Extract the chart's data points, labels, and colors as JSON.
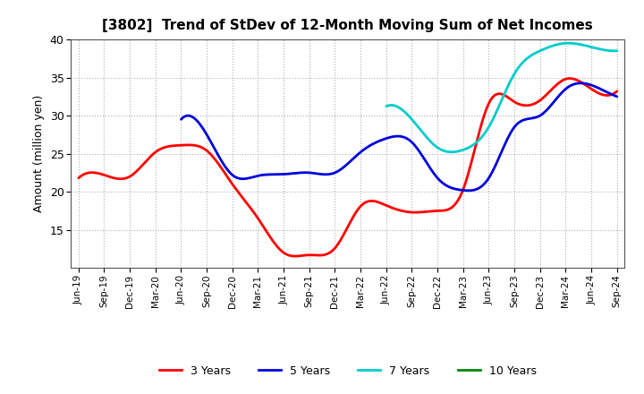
{
  "title": "[3802]  Trend of StDev of 12-Month Moving Sum of Net Incomes",
  "ylabel": "Amount (million yen)",
  "ylim": [
    10,
    40
  ],
  "yticks": [
    15,
    20,
    25,
    30,
    35,
    40
  ],
  "background_color": "#ffffff",
  "plot_bg_color": "#ffffff",
  "grid_color": "#b0b0b0",
  "x_labels": [
    "Jun-19",
    "Sep-19",
    "Dec-19",
    "Mar-20",
    "Jun-20",
    "Sep-20",
    "Dec-20",
    "Mar-21",
    "Jun-21",
    "Sep-21",
    "Dec-21",
    "Mar-22",
    "Jun-22",
    "Sep-22",
    "Dec-22",
    "Mar-23",
    "Jun-23",
    "Sep-23",
    "Dec-23",
    "Mar-24",
    "Jun-24",
    "Sep-24"
  ],
  "series": {
    "3 Years": {
      "color": "#ff0000",
      "linewidth": 2.0,
      "values": [
        21.8,
        22.2,
        22.0,
        25.2,
        26.1,
        25.4,
        21.0,
        16.5,
        12.0,
        11.7,
        12.6,
        18.1,
        18.2,
        17.3,
        17.5,
        20.3,
        31.6,
        31.8,
        32.0,
        34.8,
        33.5,
        33.2
      ]
    },
    "5 Years": {
      "color": "#0000dd",
      "linewidth": 2.0,
      "values": [
        null,
        null,
        null,
        null,
        29.5,
        27.5,
        22.2,
        22.1,
        22.3,
        22.5,
        22.5,
        25.2,
        27.0,
        26.5,
        21.8,
        20.2,
        21.8,
        28.5,
        30.0,
        33.5,
        34.0,
        32.5
      ]
    },
    "7 Years": {
      "color": "#00cccc",
      "linewidth": 2.0,
      "values": [
        null,
        null,
        null,
        null,
        null,
        null,
        null,
        null,
        null,
        null,
        null,
        null,
        31.2,
        29.5,
        25.8,
        25.5,
        28.5,
        35.5,
        38.5,
        39.5,
        39.0,
        38.5
      ]
    },
    "10 Years": {
      "color": "#008800",
      "linewidth": 2.0,
      "values": [
        null,
        null,
        null,
        null,
        null,
        null,
        null,
        null,
        null,
        null,
        null,
        null,
        null,
        null,
        null,
        null,
        null,
        null,
        null,
        null,
        null,
        null
      ]
    }
  },
  "legend_labels": [
    "3 Years",
    "5 Years",
    "7 Years",
    "10 Years"
  ],
  "legend_colors": [
    "#ff0000",
    "#0000dd",
    "#00cccc",
    "#008800"
  ]
}
